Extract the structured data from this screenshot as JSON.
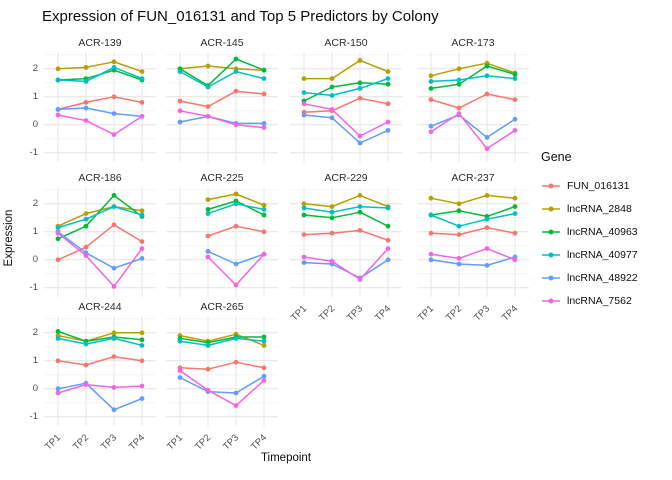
{
  "title": "Expression of FUN_016131 and Top 5 Predictors by Colony",
  "axes": {
    "x_title": "Timepoint",
    "y_title": "Expression",
    "x_tick_labels": [
      "TP1",
      "TP2",
      "TP3",
      "TP4"
    ],
    "y_tick_labels": [
      "2",
      "1",
      "0",
      "-1"
    ]
  },
  "legend": {
    "title": "Gene",
    "entries": [
      {
        "label": "FUN_016131",
        "color": "#F8766D"
      },
      {
        "label": "lncRNA_2848",
        "color": "#B79F00"
      },
      {
        "label": "lncRNA_40963",
        "color": "#00BA38"
      },
      {
        "label": "lncRNA_40977",
        "color": "#00BFC4"
      },
      {
        "label": "lncRNA_48922",
        "color": "#619CFF"
      },
      {
        "label": "lncRNA_7562",
        "color": "#F564E3"
      }
    ]
  },
  "style": {
    "grid_major_color": "#E4E4E4",
    "grid_minor_color": "#F2F2F2",
    "tick_text_color": "#4d4d4d",
    "background": "#ffffff"
  },
  "chart_data": {
    "type": "line",
    "title": "Expression of FUN_016131 and Top 5 Predictors by Colony",
    "xlabel": "Timepoint",
    "ylabel": "Expression",
    "legend_title": "Gene",
    "legend_position": "right",
    "grid": true,
    "x": [
      "TP1",
      "TP2",
      "TP3",
      "TP4"
    ],
    "y_ticks": [
      2,
      1,
      0,
      -1
    ],
    "ylim": [
      -1.3,
      2.6
    ],
    "facets": [
      {
        "colony": "ACR-139",
        "series": [
          {
            "name": "FUN_016131",
            "values": [
              0.55,
              0.8,
              1.0,
              0.8
            ]
          },
          {
            "name": "lncRNA_2848",
            "values": [
              2.0,
              2.05,
              2.25,
              1.9
            ]
          },
          {
            "name": "lncRNA_40963",
            "values": [
              1.6,
              1.65,
              1.95,
              1.6
            ]
          },
          {
            "name": "lncRNA_40977",
            "values": [
              1.6,
              1.55,
              2.05,
              1.65
            ]
          },
          {
            "name": "lncRNA_48922",
            "values": [
              0.55,
              0.6,
              0.4,
              0.3
            ]
          },
          {
            "name": "lncRNA_7562",
            "values": [
              0.35,
              0.15,
              -0.35,
              0.3
            ]
          }
        ]
      },
      {
        "colony": "ACR-145",
        "series": [
          {
            "name": "FUN_016131",
            "values": [
              0.85,
              0.65,
              1.2,
              1.1
            ]
          },
          {
            "name": "lncRNA_2848",
            "values": [
              2.0,
              2.1,
              2.0,
              1.95
            ]
          },
          {
            "name": "lncRNA_40963",
            "values": [
              2.0,
              1.4,
              2.35,
              1.95
            ]
          },
          {
            "name": "lncRNA_40977",
            "values": [
              1.9,
              1.35,
              1.9,
              1.65
            ]
          },
          {
            "name": "lncRNA_48922",
            "values": [
              0.1,
              0.3,
              0.05,
              0.05
            ]
          },
          {
            "name": "lncRNA_7562",
            "values": [
              0.5,
              0.3,
              0.0,
              -0.1
            ]
          }
        ]
      },
      {
        "colony": "ACR-150",
        "series": [
          {
            "name": "FUN_016131",
            "values": [
              0.45,
              0.5,
              0.95,
              0.75
            ]
          },
          {
            "name": "lncRNA_2848",
            "values": [
              1.65,
              1.65,
              2.3,
              1.9
            ]
          },
          {
            "name": "lncRNA_40963",
            "values": [
              0.85,
              1.35,
              1.5,
              1.45
            ]
          },
          {
            "name": "lncRNA_40977",
            "values": [
              1.15,
              1.05,
              1.3,
              1.65
            ]
          },
          {
            "name": "lncRNA_48922",
            "values": [
              0.35,
              0.25,
              -0.65,
              -0.2
            ]
          },
          {
            "name": "lncRNA_7562",
            "values": [
              0.75,
              0.55,
              -0.4,
              0.1
            ]
          }
        ]
      },
      {
        "colony": "ACR-173",
        "series": [
          {
            "name": "FUN_016131",
            "values": [
              0.9,
              0.6,
              1.1,
              0.9
            ]
          },
          {
            "name": "lncRNA_2848",
            "values": [
              1.75,
              2.0,
              2.2,
              1.85
            ]
          },
          {
            "name": "lncRNA_40963",
            "values": [
              1.3,
              1.45,
              2.1,
              1.8
            ]
          },
          {
            "name": "lncRNA_40977",
            "values": [
              1.55,
              1.6,
              1.75,
              1.65
            ]
          },
          {
            "name": "lncRNA_48922",
            "values": [
              -0.05,
              0.35,
              -0.45,
              0.2
            ]
          },
          {
            "name": "lncRNA_7562",
            "values": [
              -0.25,
              0.4,
              -0.85,
              -0.2
            ]
          }
        ]
      },
      {
        "colony": "ACR-186",
        "series": [
          {
            "name": "FUN_016131",
            "values": [
              0.0,
              0.45,
              1.25,
              0.65
            ]
          },
          {
            "name": "lncRNA_2848",
            "values": [
              1.2,
              1.65,
              1.9,
              1.75
            ]
          },
          {
            "name": "lncRNA_40963",
            "values": [
              0.75,
              1.2,
              2.3,
              1.55
            ]
          },
          {
            "name": "lncRNA_40977",
            "values": [
              1.15,
              1.45,
              1.9,
              1.6
            ]
          },
          {
            "name": "lncRNA_48922",
            "values": [
              1.0,
              0.25,
              -0.3,
              0.05
            ]
          },
          {
            "name": "lncRNA_7562",
            "values": [
              0.95,
              0.15,
              -0.95,
              0.4
            ]
          }
        ]
      },
      {
        "colony": "ACR-225",
        "series": [
          {
            "name": "FUN_016131",
            "values": [
              null,
              0.85,
              1.2,
              1.0
            ]
          },
          {
            "name": "lncRNA_2848",
            "values": [
              null,
              2.15,
              2.35,
              1.95
            ]
          },
          {
            "name": "lncRNA_40963",
            "values": [
              null,
              1.8,
              2.1,
              1.6
            ]
          },
          {
            "name": "lncRNA_40977",
            "values": [
              null,
              1.65,
              2.0,
              1.8
            ]
          },
          {
            "name": "lncRNA_48922",
            "values": [
              null,
              0.3,
              -0.15,
              0.2
            ]
          },
          {
            "name": "lncRNA_7562",
            "values": [
              null,
              0.1,
              -0.9,
              0.2
            ]
          }
        ]
      },
      {
        "colony": "ACR-229",
        "series": [
          {
            "name": "FUN_016131",
            "values": [
              0.9,
              0.95,
              1.05,
              0.7
            ]
          },
          {
            "name": "lncRNA_2848",
            "values": [
              2.0,
              1.9,
              2.3,
              1.9
            ]
          },
          {
            "name": "lncRNA_40963",
            "values": [
              1.6,
              1.5,
              1.7,
              1.2
            ]
          },
          {
            "name": "lncRNA_40977",
            "values": [
              1.85,
              1.7,
              1.9,
              1.85
            ]
          },
          {
            "name": "lncRNA_48922",
            "values": [
              -0.1,
              -0.15,
              -0.65,
              0.0
            ]
          },
          {
            "name": "lncRNA_7562",
            "values": [
              0.1,
              -0.05,
              -0.7,
              0.4
            ]
          }
        ]
      },
      {
        "colony": "ACR-237",
        "series": [
          {
            "name": "FUN_016131",
            "values": [
              0.95,
              0.9,
              1.15,
              0.95
            ]
          },
          {
            "name": "lncRNA_2848",
            "values": [
              2.2,
              2.0,
              2.3,
              2.2
            ]
          },
          {
            "name": "lncRNA_40963",
            "values": [
              1.6,
              1.75,
              1.55,
              1.9
            ]
          },
          {
            "name": "lncRNA_40977",
            "values": [
              1.6,
              1.2,
              1.45,
              1.65
            ]
          },
          {
            "name": "lncRNA_48922",
            "values": [
              0.0,
              -0.15,
              -0.2,
              0.1
            ]
          },
          {
            "name": "lncRNA_7562",
            "values": [
              0.2,
              0.05,
              0.4,
              0.0
            ]
          }
        ]
      },
      {
        "colony": "ACR-244",
        "series": [
          {
            "name": "FUN_016131",
            "values": [
              1.0,
              0.85,
              1.15,
              1.0
            ]
          },
          {
            "name": "lncRNA_2848",
            "values": [
              1.9,
              1.7,
              2.0,
              2.0
            ]
          },
          {
            "name": "lncRNA_40963",
            "values": [
              2.05,
              1.7,
              1.85,
              1.75
            ]
          },
          {
            "name": "lncRNA_40977",
            "values": [
              1.8,
              1.6,
              1.8,
              1.55
            ]
          },
          {
            "name": "lncRNA_48922",
            "values": [
              0.0,
              0.2,
              -0.75,
              -0.35
            ]
          },
          {
            "name": "lncRNA_7562",
            "values": [
              -0.15,
              0.15,
              0.05,
              0.1
            ]
          }
        ]
      },
      {
        "colony": "ACR-265",
        "series": [
          {
            "name": "FUN_016131",
            "values": [
              0.75,
              0.7,
              0.95,
              0.75
            ]
          },
          {
            "name": "lncRNA_2848",
            "values": [
              1.9,
              1.7,
              1.95,
              1.55
            ]
          },
          {
            "name": "lncRNA_40963",
            "values": [
              1.8,
              1.65,
              1.85,
              1.85
            ]
          },
          {
            "name": "lncRNA_40977",
            "values": [
              1.7,
              1.55,
              1.8,
              1.7
            ]
          },
          {
            "name": "lncRNA_48922",
            "values": [
              0.4,
              -0.1,
              -0.15,
              0.45
            ]
          },
          {
            "name": "lncRNA_7562",
            "values": [
              0.65,
              -0.05,
              -0.6,
              0.3
            ]
          }
        ]
      }
    ]
  }
}
